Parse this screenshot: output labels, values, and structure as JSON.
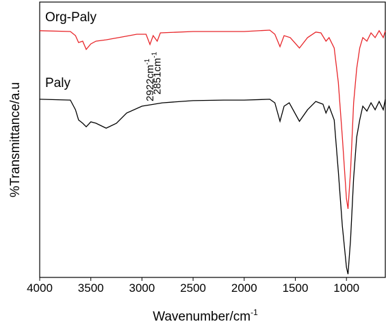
{
  "chart_data": {
    "type": "line",
    "xlabel": "Wavenumber/cm",
    "xlabel_sup": "-1",
    "ylabel": "%Transmittance/a.u",
    "xlim": [
      4000,
      620
    ],
    "ylim": [
      0,
      100
    ],
    "xticks": [
      4000,
      3500,
      3000,
      2500,
      2000,
      1500,
      1000
    ],
    "annotations": [
      {
        "text": "2922cm",
        "sup": "-1",
        "x": 2922
      },
      {
        "text": "2851cm",
        "sup": "-1",
        "x": 2851
      }
    ],
    "series": [
      {
        "name": "Org-Paly",
        "color": "#e8262a",
        "x": [
          4000,
          3700,
          3650,
          3620,
          3580,
          3545,
          3500,
          3450,
          3350,
          3200,
          3050,
          2960,
          2922,
          2890,
          2851,
          2820,
          2500,
          2000,
          1750,
          1700,
          1650,
          1610,
          1550,
          1460,
          1380,
          1300,
          1250,
          1200,
          1170,
          1120,
          1080,
          1040,
          1000,
          985,
          960,
          930,
          900,
          870,
          840,
          800,
          760,
          720,
          680,
          640,
          620
        ],
        "values": [
          89.6,
          89.3,
          87.8,
          85.3,
          85.8,
          82.8,
          84.8,
          85.8,
          86.3,
          87.3,
          88.3,
          88.3,
          84.6,
          87.8,
          85.8,
          88.8,
          89.3,
          89.3,
          89.8,
          88.3,
          83.8,
          87.8,
          87.1,
          83.3,
          87.1,
          89.1,
          88.8,
          85.8,
          87.1,
          83.3,
          70.9,
          51.0,
          28.6,
          24.9,
          38.6,
          63.4,
          75.9,
          83.3,
          87.1,
          85.8,
          88.8,
          87.1,
          89.6,
          87.1,
          89.6
        ]
      },
      {
        "name": "Paly",
        "color": "#000000",
        "x": [
          4000,
          3700,
          3650,
          3620,
          3580,
          3545,
          3500,
          3450,
          3350,
          3250,
          3150,
          3000,
          2800,
          2500,
          2200,
          2000,
          1750,
          1700,
          1650,
          1610,
          1560,
          1460,
          1380,
          1300,
          1230,
          1200,
          1170,
          1120,
          1080,
          1040,
          1000,
          985,
          960,
          930,
          900,
          870,
          840,
          800,
          760,
          720,
          680,
          640,
          620
        ],
        "values": [
          64.7,
          64.4,
          60.9,
          57.2,
          56.0,
          54.7,
          56.5,
          56.0,
          54.2,
          56.0,
          59.7,
          62.2,
          63.4,
          64.2,
          64.4,
          64.4,
          64.7,
          63.4,
          56.7,
          62.2,
          63.4,
          56.7,
          60.9,
          63.9,
          62.9,
          59.7,
          62.2,
          57.2,
          38.6,
          18.7,
          3.7,
          1.2,
          13.7,
          36.1,
          51.0,
          57.2,
          62.2,
          60.4,
          63.4,
          60.9,
          63.9,
          60.9,
          64.7
        ]
      }
    ]
  }
}
